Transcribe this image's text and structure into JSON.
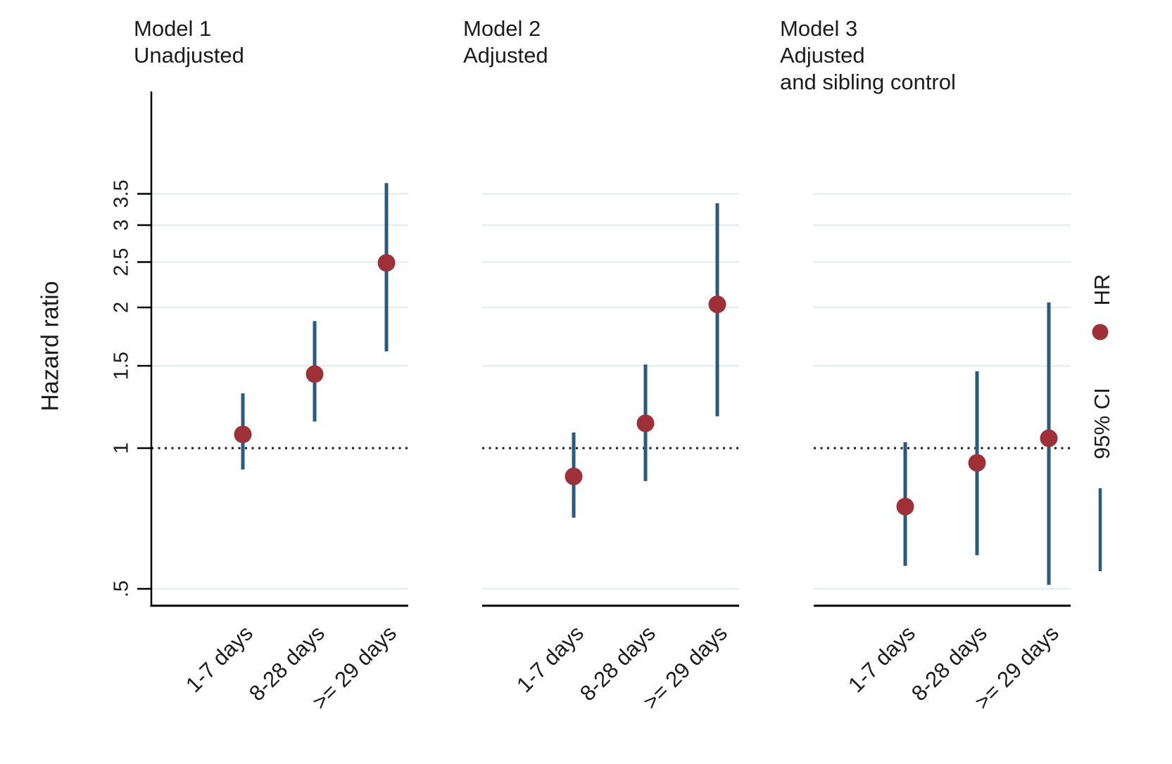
{
  "chart_data": {
    "type": "forest",
    "ylabel": "Hazard ratio",
    "y_axis": {
      "scale": "log",
      "ticks": [
        0.5,
        1,
        1.5,
        2,
        2.5,
        3,
        3.5
      ],
      "tick_labels": [
        ".5",
        "1",
        "1.5",
        "2",
        "2.5",
        "3",
        "3.5"
      ],
      "range_approx": [
        0.46,
        5.8
      ],
      "reference_line": 1,
      "grid": true
    },
    "categories": [
      "1-7 days",
      "8-28 days",
      ">= 29 days"
    ],
    "panels": [
      {
        "title_lines": [
          "Model 1",
          "Unadjusted"
        ],
        "series": [
          {
            "category": "1-7 days",
            "hr": 1.07,
            "ci_low": 0.9,
            "ci_high": 1.31
          },
          {
            "category": "8-28 days",
            "hr": 1.44,
            "ci_low": 1.14,
            "ci_high": 1.87
          },
          {
            "category": ">= 29 days",
            "hr": 2.49,
            "ci_low": 1.61,
            "ci_high": 3.69
          }
        ]
      },
      {
        "title_lines": [
          "Model 2",
          "Adjusted"
        ],
        "series": [
          {
            "category": "1-7 days",
            "hr": 0.87,
            "ci_low": 0.71,
            "ci_high": 1.08
          },
          {
            "category": "8-28 days",
            "hr": 1.13,
            "ci_low": 0.85,
            "ci_high": 1.51
          },
          {
            "category": ">= 29 days",
            "hr": 2.03,
            "ci_low": 1.17,
            "ci_high": 3.34
          }
        ]
      },
      {
        "title_lines": [
          "Model 3",
          "Adjusted",
          "and sibling control"
        ],
        "series": [
          {
            "category": "1-7 days",
            "hr": 0.75,
            "ci_low": 0.56,
            "ci_high": 1.03
          },
          {
            "category": "8-28 days",
            "hr": 0.93,
            "ci_low": 0.59,
            "ci_high": 1.46
          },
          {
            "category": ">= 29 days",
            "hr": 1.05,
            "ci_low": 0.51,
            "ci_high": 2.05
          }
        ]
      }
    ],
    "legend": [
      {
        "label": "HR",
        "marker": "dot"
      },
      {
        "label": "95% CI",
        "marker": "line"
      }
    ],
    "legend_position": "right",
    "colors": {
      "hr_dot": "#9e3138",
      "ci_line": "#295a80",
      "gridline": "#e4edf0",
      "reference_line": "#1a1a1a",
      "axis": "#000000",
      "text": "#1c1c1c",
      "background": "#ffffff"
    }
  }
}
